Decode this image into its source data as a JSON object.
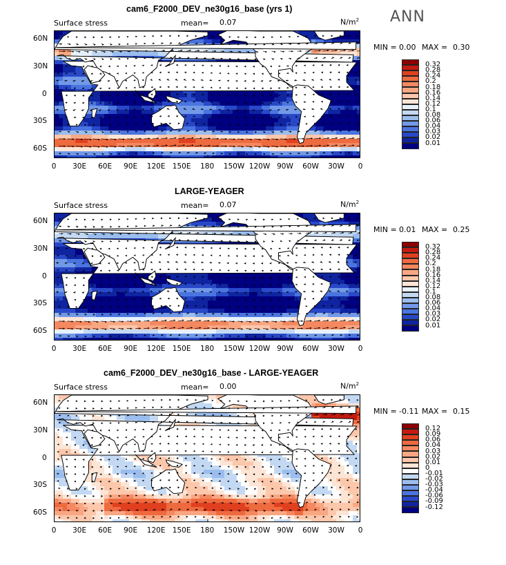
{
  "season": "ANN",
  "chart_data": [
    {
      "type": "heatmap",
      "title": "cam6_F2000_DEV_ne30g16_base (yrs 1)",
      "variable": "Surface stress",
      "mean_label": "mean=",
      "mean": "0.07",
      "units": "N/m",
      "units_exp": "2",
      "min_label": "MIN =",
      "min": "0.00",
      "max_label": "MAX =",
      "max": "0.30",
      "colorbar_levels": [
        "0.32",
        "0.28",
        "0.24",
        "0.2",
        "0.18",
        "0.16",
        "0.14",
        "0.12",
        "0.1",
        "0.08",
        "0.06",
        "0.04",
        "0.03",
        "0.02",
        "0.01"
      ],
      "colorbar_colors": [
        "#8b0000",
        "#c41a0f",
        "#e0401f",
        "#ee6a3f",
        "#f48860",
        "#f9a783",
        "#fcc7ab",
        "#fde5d6",
        "#e7f1fb",
        "#c3d9f3",
        "#9bbdee",
        "#7199e8",
        "#4a74e0",
        "#2848c8",
        "#0f24a0",
        "#000080"
      ],
      "x_ticks": [
        "0",
        "30E",
        "60E",
        "90E",
        "120E",
        "150E",
        "180",
        "150W",
        "120W",
        "90W",
        "60W",
        "30W",
        "0"
      ],
      "y_ticks": [
        "60N",
        "30N",
        "0",
        "30S",
        "60S"
      ],
      "ylim": [
        -70,
        70
      ],
      "xlim": [
        0,
        360
      ]
    },
    {
      "type": "heatmap",
      "title": "LARGE-YEAGER",
      "variable": "Surface stress",
      "mean_label": "mean=",
      "mean": "0.07",
      "units": "N/m",
      "units_exp": "2",
      "min_label": "MIN =",
      "min": "0.01",
      "max_label": "MAX =",
      "max": "0.25",
      "colorbar_levels": [
        "0.32",
        "0.28",
        "0.24",
        "0.2",
        "0.18",
        "0.16",
        "0.14",
        "0.12",
        "0.1",
        "0.08",
        "0.06",
        "0.04",
        "0.03",
        "0.02",
        "0.01"
      ],
      "colorbar_colors": [
        "#8b0000",
        "#c41a0f",
        "#e0401f",
        "#ee6a3f",
        "#f48860",
        "#f9a783",
        "#fcc7ab",
        "#fde5d6",
        "#e7f1fb",
        "#c3d9f3",
        "#9bbdee",
        "#7199e8",
        "#4a74e0",
        "#2848c8",
        "#0f24a0",
        "#000080"
      ],
      "x_ticks": [
        "0",
        "30E",
        "60E",
        "90E",
        "120E",
        "150E",
        "180",
        "150W",
        "120W",
        "90W",
        "60W",
        "30W",
        "0"
      ],
      "y_ticks": [
        "60N",
        "30N",
        "0",
        "30S",
        "60S"
      ],
      "ylim": [
        -70,
        70
      ],
      "xlim": [
        0,
        360
      ]
    },
    {
      "type": "heatmap",
      "title": "cam6_F2000_DEV_ne30g16_base - LARGE-YEAGER",
      "variable": "Surface stress",
      "mean_label": "mean=",
      "mean": "0.00",
      "units": "N/m",
      "units_exp": "2",
      "min_label": "MIN =",
      "min": "-0.11",
      "max_label": "MAX =",
      "max": "0.15",
      "colorbar_levels": [
        "0.12",
        "0.09",
        "0.06",
        "0.04",
        "0.03",
        "0.02",
        "0.01",
        "0",
        "-0.01",
        "-0.02",
        "-0.03",
        "-0.04",
        "-0.06",
        "-0.09",
        "-0.12"
      ],
      "colorbar_colors": [
        "#8b0000",
        "#c41a0f",
        "#e0401f",
        "#ee6a3f",
        "#f48860",
        "#f9a783",
        "#fcc7ab",
        "#fde5d6",
        "#ffffff",
        "#c3d9f3",
        "#9bbdee",
        "#7199e8",
        "#4a74e0",
        "#2848c8",
        "#0f24a0",
        "#000080"
      ],
      "x_ticks": [
        "0",
        "30E",
        "60E",
        "90E",
        "120E",
        "150E",
        "180",
        "150W",
        "120W",
        "90W",
        "60W",
        "30W",
        "0"
      ],
      "y_ticks": [
        "60N",
        "30N",
        "0",
        "30S",
        "60S"
      ],
      "ylim": [
        -70,
        70
      ],
      "xlim": [
        0,
        360
      ]
    }
  ]
}
